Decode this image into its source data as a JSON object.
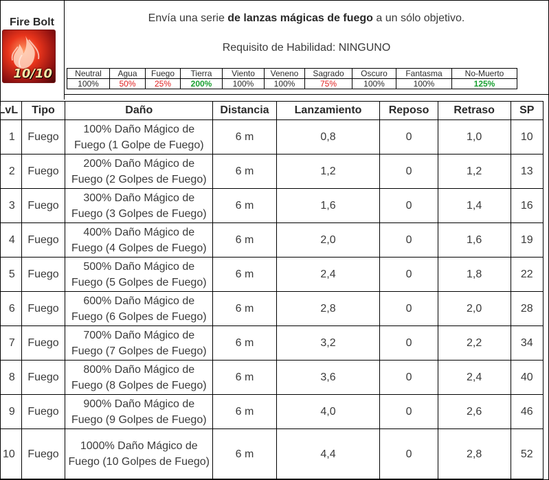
{
  "skill": {
    "name": "Fire Bolt",
    "level_label": "10/10",
    "icon": "fire-bolt-icon",
    "description_pre": "Envía una serie ",
    "description_bold": "de lanzas mágicas de fuego",
    "description_post": " a un sólo objetivo.",
    "requirement": "Requisito de Habilidad: NINGUNO"
  },
  "colors": {
    "red": "#e02020",
    "green": "#18a030"
  },
  "elements": [
    {
      "name": "Neutral",
      "value": "100%",
      "tone": "normal"
    },
    {
      "name": "Agua",
      "value": "50%",
      "tone": "red"
    },
    {
      "name": "Fuego",
      "value": "25%",
      "tone": "red"
    },
    {
      "name": "Tierra",
      "value": "200%",
      "tone": "green"
    },
    {
      "name": "Viento",
      "value": "100%",
      "tone": "normal"
    },
    {
      "name": "Veneno",
      "value": "100%",
      "tone": "normal"
    },
    {
      "name": "Sagrado",
      "value": "75%",
      "tone": "red"
    },
    {
      "name": "Oscuro",
      "value": "100%",
      "tone": "normal"
    },
    {
      "name": "Fantasma",
      "value": "100%",
      "tone": "normal"
    },
    {
      "name": "No-Muerto",
      "value": "125%",
      "tone": "green"
    }
  ],
  "table": {
    "headers": [
      "LvL",
      "Tipo",
      "Daño",
      "Distancia",
      "Lanzamiento",
      "Reposo",
      "Retraso",
      "SP"
    ],
    "rows": [
      [
        "1",
        "Fuego",
        "100% Daño Mágico de Fuego (1 Golpe de Fuego)",
        "6 m",
        "0,8",
        "0",
        "1,0",
        "10"
      ],
      [
        "2",
        "Fuego",
        "200% Daño Mágico de Fuego (2 Golpes de Fuego)",
        "6 m",
        "1,2",
        "0",
        "1,2",
        "13"
      ],
      [
        "3",
        "Fuego",
        "300% Daño Mágico de Fuego (3 Golpes de Fuego)",
        "6 m",
        "1,6",
        "0",
        "1,4",
        "16"
      ],
      [
        "4",
        "Fuego",
        "400% Daño Mágico de Fuego (4 Golpes de Fuego)",
        "6 m",
        "2,0",
        "0",
        "1,6",
        "19"
      ],
      [
        "5",
        "Fuego",
        "500% Daño Mágico de Fuego (5 Golpes de Fuego)",
        "6 m",
        "2,4",
        "0",
        "1,8",
        "22"
      ],
      [
        "6",
        "Fuego",
        "600% Daño Mágico de Fuego (6 Golpes de Fuego)",
        "6 m",
        "2,8",
        "0",
        "2,0",
        "28"
      ],
      [
        "7",
        "Fuego",
        "700% Daño Mágico de Fuego (7 Golpes de Fuego)",
        "6 m",
        "3,2",
        "0",
        "2,2",
        "34"
      ],
      [
        "8",
        "Fuego",
        "800% Daño Mágico de Fuego (8 Golpes de Fuego)",
        "6 m",
        "3,6",
        "0",
        "2,4",
        "40"
      ],
      [
        "9",
        "Fuego",
        "900% Daño Mágico de Fuego (9 Golpes de Fuego)",
        "6 m",
        "4,0",
        "0",
        "2,6",
        "46"
      ],
      [
        "10",
        "Fuego",
        "1000% Daño Mágico de Fuego (10 Golpes de Fuego)",
        "6 m",
        "4,4",
        "0",
        "2,8",
        "52"
      ]
    ]
  }
}
